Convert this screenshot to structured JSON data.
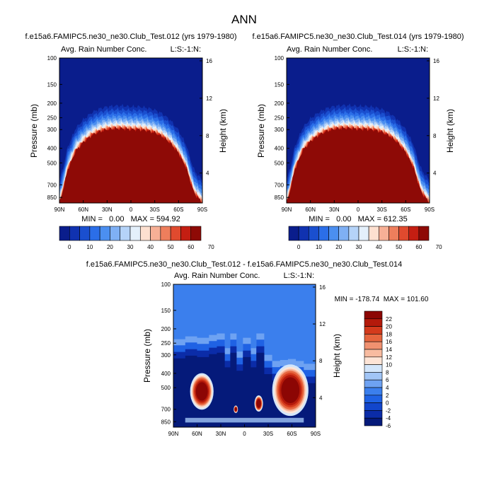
{
  "figure": {
    "title": "ANN"
  },
  "palettes": {
    "abs": [
      "#0a1d8c",
      "#1032b0",
      "#1a4fcf",
      "#2b6ee8",
      "#4b8ff0",
      "#7fb0f4",
      "#b5d3f8",
      "#e4f0fb",
      "#fde0d0",
      "#f7b096",
      "#ee7e5c",
      "#e04a2e",
      "#c41e12",
      "#8e0a06"
    ],
    "diff": [
      "#051a7a",
      "#0b2ca8",
      "#1246cc",
      "#1f62e4",
      "#3b7fed",
      "#6ea2f2",
      "#a1c5f6",
      "#d3e6fb",
      "#fde4d6",
      "#f8bba0",
      "#f09170",
      "#e6653e",
      "#d43a1c",
      "#b41a0b",
      "#8c0604"
    ],
    "diff_background": "#3b7fed"
  },
  "chart_data": [
    {
      "type": "heatmap",
      "case_title": "f.e15a6.FAMIPC5.ne30_ne30.Club_Test.012 (yrs 1979-1980)",
      "field_label": "Avg. Rain Number Conc.",
      "corner_label": "L:S:-1:N:",
      "xlabel": "",
      "ylabel": "Pressure (mb)",
      "y2label": "Height (km)",
      "x_ticks": [
        "90N",
        "60N",
        "30N",
        "0",
        "30S",
        "60S",
        "90S"
      ],
      "x_tick_values": [
        90,
        60,
        30,
        0,
        -30,
        -60,
        -90
      ],
      "y_ticks": [
        "100",
        "150",
        "200",
        "250",
        "300",
        "400",
        "500",
        "700",
        "850"
      ],
      "y_tick_values": [
        100,
        150,
        200,
        250,
        300,
        400,
        500,
        700,
        850
      ],
      "y_range": [
        100,
        925
      ],
      "y2_ticks": [
        "16",
        "12",
        "8",
        "4"
      ],
      "y2_tick_values": [
        16,
        12,
        8,
        4
      ],
      "stats_text": "MIN =   0.00   MAX = 594.92",
      "min": 0.0,
      "max": 594.92,
      "colorbar_labels": [
        "0",
        "10",
        "20",
        "30",
        "40",
        "50",
        "60",
        "70"
      ],
      "levels": [
        0,
        5,
        10,
        15,
        20,
        25,
        30,
        35,
        40,
        45,
        50,
        55,
        60,
        65,
        70
      ],
      "top_boundary_mb": {
        "lat": [
          90,
          80,
          70,
          60,
          50,
          40,
          30,
          20,
          10,
          0,
          -10,
          -20,
          -30,
          -40,
          -50,
          -60,
          -70,
          -80,
          -90
        ],
        "p": [
          925,
          560,
          420,
          365,
          330,
          310,
          300,
          296,
          296,
          300,
          300,
          305,
          315,
          335,
          370,
          430,
          540,
          800,
          925
        ]
      }
    },
    {
      "type": "heatmap",
      "case_title": "f.e15a6.FAMIPC5.ne30_ne30.Club_Test.014 (yrs 1979-1980)",
      "field_label": "Avg. Rain Number Conc.",
      "corner_label": "L:S:-1:N:",
      "xlabel": "",
      "ylabel": "Pressure (mb)",
      "y2label": "Height (km)",
      "x_ticks": [
        "90N",
        "60N",
        "30N",
        "0",
        "30S",
        "60S",
        "90S"
      ],
      "x_tick_values": [
        90,
        60,
        30,
        0,
        -30,
        -60,
        -90
      ],
      "y_ticks": [
        "100",
        "150",
        "200",
        "250",
        "300",
        "400",
        "500",
        "700",
        "850"
      ],
      "y_tick_values": [
        100,
        150,
        200,
        250,
        300,
        400,
        500,
        700,
        850
      ],
      "y_range": [
        100,
        925
      ],
      "y2_ticks": [
        "16",
        "12",
        "8",
        "4"
      ],
      "y2_tick_values": [
        16,
        12,
        8,
        4
      ],
      "stats_text": "MIN =   0.00   MAX = 612.35",
      "min": 0.0,
      "max": 612.35,
      "colorbar_labels": [
        "0",
        "10",
        "20",
        "30",
        "40",
        "50",
        "60",
        "70"
      ],
      "levels": [
        0,
        5,
        10,
        15,
        20,
        25,
        30,
        35,
        40,
        45,
        50,
        55,
        60,
        65,
        70
      ],
      "top_boundary_mb": {
        "lat": [
          90,
          80,
          70,
          60,
          50,
          40,
          30,
          20,
          10,
          0,
          -10,
          -20,
          -30,
          -40,
          -50,
          -60,
          -70,
          -80,
          -90
        ],
        "p": [
          925,
          555,
          415,
          360,
          328,
          308,
          298,
          294,
          294,
          298,
          298,
          302,
          312,
          332,
          366,
          425,
          535,
          790,
          925
        ]
      }
    },
    {
      "type": "heatmap",
      "case_title": "f.e15a6.FAMIPC5.ne30_ne30.Club_Test.012 - f.e15a6.FAMIPC5.ne30_ne30.Club_Test.014",
      "field_label": "Avg. Rain Number Conc.",
      "corner_label": "L:S:-1:N:",
      "xlabel": "",
      "ylabel": "Pressure (mb)",
      "y2label": "Height (km)",
      "x_ticks": [
        "90N",
        "60N",
        "30N",
        "0",
        "30S",
        "60S",
        "90S"
      ],
      "x_tick_values": [
        90,
        60,
        30,
        0,
        -30,
        -60,
        -90
      ],
      "y_ticks": [
        "100",
        "150",
        "200",
        "250",
        "300",
        "400",
        "500",
        "700",
        "850"
      ],
      "y_tick_values": [
        100,
        150,
        200,
        250,
        300,
        400,
        500,
        700,
        850
      ],
      "y_range": [
        100,
        925
      ],
      "y2_ticks": [
        "16",
        "12",
        "8",
        "4"
      ],
      "y2_tick_values": [
        16,
        12,
        8,
        4
      ],
      "stats_text": "MIN = -178.74  MAX = 101.60",
      "min": -178.74,
      "max": 101.6,
      "colorbar_labels": [
        "22",
        "20",
        "18",
        "16",
        "14",
        "12",
        "10",
        "8",
        "6",
        "4",
        "2",
        "0",
        "-2",
        "-4",
        "-6"
      ],
      "levels": [
        -6,
        -4,
        -2,
        0,
        2,
        4,
        6,
        8,
        10,
        12,
        14,
        16,
        18,
        20,
        22
      ],
      "features": [
        {
          "kind": "negative_band",
          "lat_range": [
            90,
            -90
          ],
          "p_range": [
            215,
            925
          ]
        },
        {
          "kind": "positive_blob",
          "lat_center": 54,
          "p_center": 530,
          "lat_halfwidth": 11,
          "p_halfwidth": 110
        },
        {
          "kind": "positive_blob",
          "lat_center": -58,
          "p_center": 520,
          "lat_halfwidth": 17,
          "p_halfwidth": 150
        },
        {
          "kind": "positive_blob",
          "lat_center": -18,
          "p_center": 640,
          "lat_halfwidth": 4,
          "p_halfwidth": 60
        },
        {
          "kind": "positive_blob",
          "lat_center": 11,
          "p_center": 700,
          "lat_halfwidth": 2,
          "p_halfwidth": 30
        }
      ]
    }
  ]
}
